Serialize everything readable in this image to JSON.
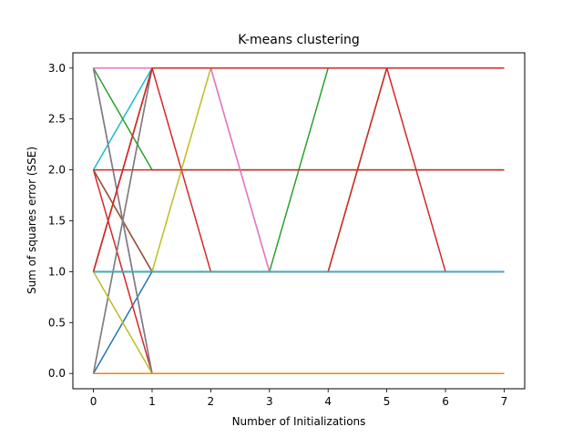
{
  "chart_data": {
    "type": "line",
    "title": "K-means clustering",
    "xlabel": "Number of Initializations",
    "ylabel": "Sum of squares error (SSE)",
    "x": [
      0,
      1,
      2,
      3,
      4,
      5,
      6,
      7
    ],
    "xlim": [
      -0.35,
      7.35
    ],
    "ylim": [
      -0.15,
      3.15
    ],
    "xticks": [
      "0",
      "1",
      "2",
      "3",
      "4",
      "5",
      "6",
      "7"
    ],
    "yticks": [
      "0.0",
      "0.5",
      "1.0",
      "1.5",
      "2.0",
      "2.5",
      "3.0"
    ],
    "grid": false,
    "series": [
      {
        "color": "#1f77b4",
        "values": [
          0,
          1,
          1,
          1,
          1,
          1,
          1,
          1
        ]
      },
      {
        "color": "#ff7f0e",
        "values": [
          2,
          1,
          1,
          1,
          1,
          1,
          1,
          1
        ]
      },
      {
        "color": "#2ca02c",
        "values": [
          1,
          3,
          3,
          3,
          3,
          3,
          3,
          3
        ]
      },
      {
        "color": "#d62728",
        "values": [
          2,
          0,
          0,
          0,
          0,
          0,
          0,
          0
        ]
      },
      {
        "color": "#9467bd",
        "values": [
          3,
          0,
          0,
          0,
          0,
          0,
          0,
          0
        ]
      },
      {
        "color": "#8c564b",
        "values": [
          0,
          3,
          3,
          3,
          3,
          3,
          3,
          3
        ]
      },
      {
        "color": "#e377c2",
        "values": [
          3,
          3,
          3,
          1,
          1,
          1,
          1,
          1
        ]
      },
      {
        "color": "#7f7f7f",
        "values": [
          0,
          3,
          3,
          3,
          3,
          3,
          3,
          3
        ]
      },
      {
        "color": "#bcbd22",
        "values": [
          1,
          0,
          0,
          0,
          0,
          0,
          0,
          0
        ]
      },
      {
        "color": "#17becf",
        "values": [
          2,
          3,
          3,
          3,
          3,
          3,
          3,
          3
        ]
      },
      {
        "color": "#1f77b4",
        "values": [
          0,
          0,
          0,
          0,
          0,
          0,
          0,
          0
        ]
      },
      {
        "color": "#ff7f0e",
        "values": [
          2,
          1,
          1,
          1,
          1,
          1,
          1,
          1
        ]
      },
      {
        "color": "#2ca02c",
        "values": [
          3,
          2,
          2,
          2,
          2,
          2,
          2,
          2
        ]
      },
      {
        "color": "#d62728",
        "values": [
          1,
          3,
          1,
          1,
          1,
          1,
          1,
          1
        ]
      },
      {
        "color": "#9467bd",
        "values": [
          3,
          0,
          0,
          0,
          0,
          0,
          0,
          0
        ]
      },
      {
        "color": "#8c564b",
        "values": [
          2,
          1,
          1,
          1,
          1,
          1,
          1,
          1
        ]
      },
      {
        "color": "#e377c2",
        "values": [
          3,
          3,
          3,
          3,
          3,
          3,
          3,
          3
        ]
      },
      {
        "color": "#7f7f7f",
        "values": [
          3,
          0,
          0,
          0,
          0,
          0,
          0,
          0
        ]
      },
      {
        "color": "#bcbd22",
        "values": [
          1,
          1,
          3,
          3,
          3,
          3,
          3,
          3
        ]
      },
      {
        "color": "#17becf",
        "values": [
          1,
          1,
          1,
          1,
          1,
          1,
          1,
          1
        ]
      },
      {
        "color": "#2ca02c",
        "values": [
          1,
          1,
          1,
          1,
          3,
          3,
          3,
          3
        ]
      },
      {
        "color": "#2ca02c",
        "values": [
          1,
          1,
          1,
          1,
          1,
          3,
          3,
          3
        ]
      },
      {
        "color": "#d62728",
        "values": [
          1,
          1,
          1,
          1,
          1,
          3,
          1,
          1
        ]
      },
      {
        "color": "#d62728",
        "values": [
          2,
          2,
          2,
          2,
          2,
          2,
          2,
          2
        ]
      },
      {
        "color": "#e377c2",
        "values": [
          3,
          3,
          3,
          1,
          1,
          1,
          1,
          1
        ]
      },
      {
        "color": "#d62728",
        "values": [
          1,
          3,
          3,
          3,
          3,
          3,
          3,
          3
        ]
      },
      {
        "color": "#1f77b4",
        "values": [
          1,
          1,
          1,
          1,
          1,
          1,
          1,
          1
        ]
      },
      {
        "color": "#17becf",
        "values": [
          1,
          1,
          1,
          1,
          1,
          1,
          1,
          1
        ]
      },
      {
        "color": "#ff7f0e",
        "values": [
          0,
          0,
          0,
          0,
          0,
          0,
          0,
          0
        ]
      }
    ]
  }
}
